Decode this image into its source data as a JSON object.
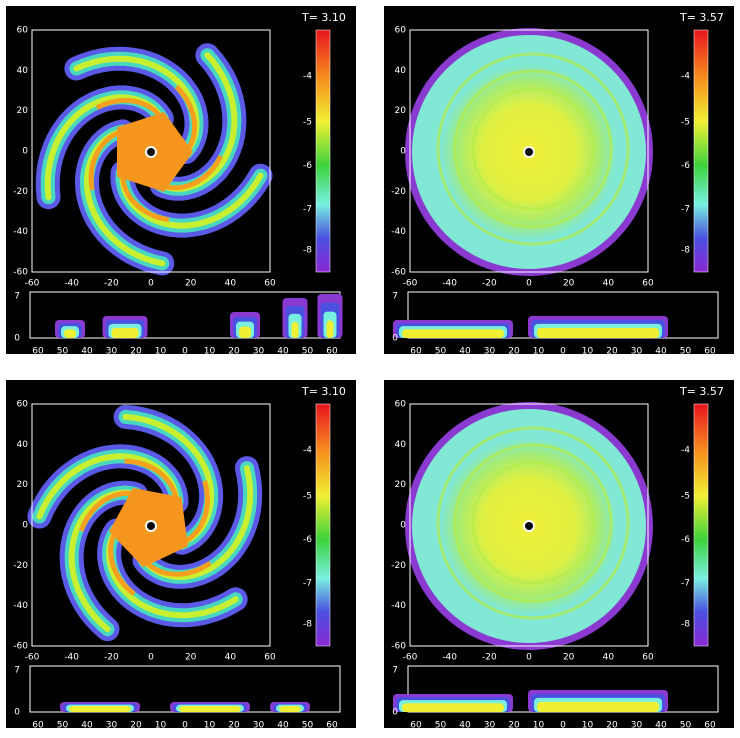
{
  "axes": {
    "y_ticks": [
      "60",
      "40",
      "20",
      "0",
      "-20",
      "-40",
      "-60"
    ],
    "x_ticks": [
      "-60",
      "-40",
      "-20",
      "0",
      "20",
      "40",
      "60"
    ],
    "colorbar_ticks": [
      "-4",
      "-5",
      "-6",
      "-7",
      "-8"
    ],
    "strip_x_ticks": [
      "60",
      "50",
      "40",
      "30",
      "20",
      "10",
      "0",
      "10",
      "20",
      "30",
      "40",
      "50",
      "60"
    ],
    "strip_y_ticks": [
      "7",
      "0"
    ]
  },
  "panels": [
    {
      "time": "T= 3.10"
    },
    {
      "time": "T= 3.57"
    },
    {
      "time": "T= 3.10"
    },
    {
      "time": "T= 3.57"
    }
  ]
}
